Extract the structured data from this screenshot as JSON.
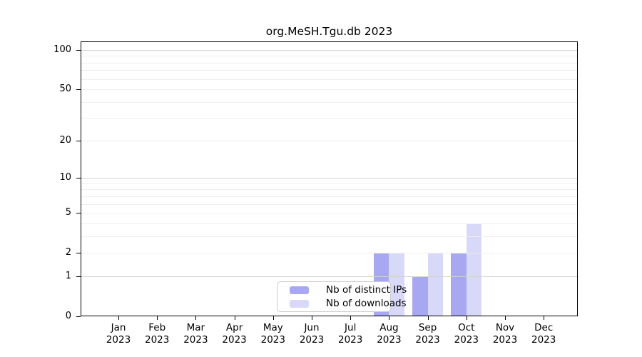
{
  "chart_data": {
    "type": "bar",
    "title": "org.MeSH.Tgu.db 2023",
    "y_scale": "log1p",
    "categories": [
      "Jan",
      "Feb",
      "Mar",
      "Apr",
      "May",
      "Jun",
      "Jul",
      "Aug",
      "Sep",
      "Oct",
      "Nov",
      "Dec"
    ],
    "category_year": "2023",
    "series": [
      {
        "name": "Nb of distinct IPs",
        "color": "#a8a8f2",
        "values": [
          0,
          0,
          0,
          0,
          0,
          0,
          0,
          2,
          1,
          2,
          0,
          0
        ]
      },
      {
        "name": "Nb of downloads",
        "color": "#d8d8f8",
        "values": [
          0,
          0,
          0,
          0,
          0,
          0,
          0,
          2,
          2,
          4,
          0,
          0
        ]
      }
    ],
    "y_ticks": [
      0,
      1,
      2,
      5,
      10,
      20,
      50,
      100
    ],
    "major_gridlines": [
      1,
      10,
      100
    ],
    "minor_gridlines": [
      2,
      3,
      4,
      5,
      6,
      7,
      8,
      9,
      20,
      30,
      40,
      50,
      60,
      70,
      80,
      90
    ],
    "ylim": [
      0,
      100
    ],
    "grid": true,
    "legend_position": "bottom-center"
  },
  "legend": {
    "items": [
      {
        "label": "Nb of distinct IPs"
      },
      {
        "label": "Nb of downloads"
      }
    ]
  },
  "colors": {
    "distinct_ips": "#a8a8f2",
    "downloads": "#d8d8f8",
    "grid_major": "#d2d2d2",
    "grid_minor": "#eeeeee",
    "axis": "#000000",
    "legend_border": "#cccccc",
    "background": "#ffffff"
  }
}
